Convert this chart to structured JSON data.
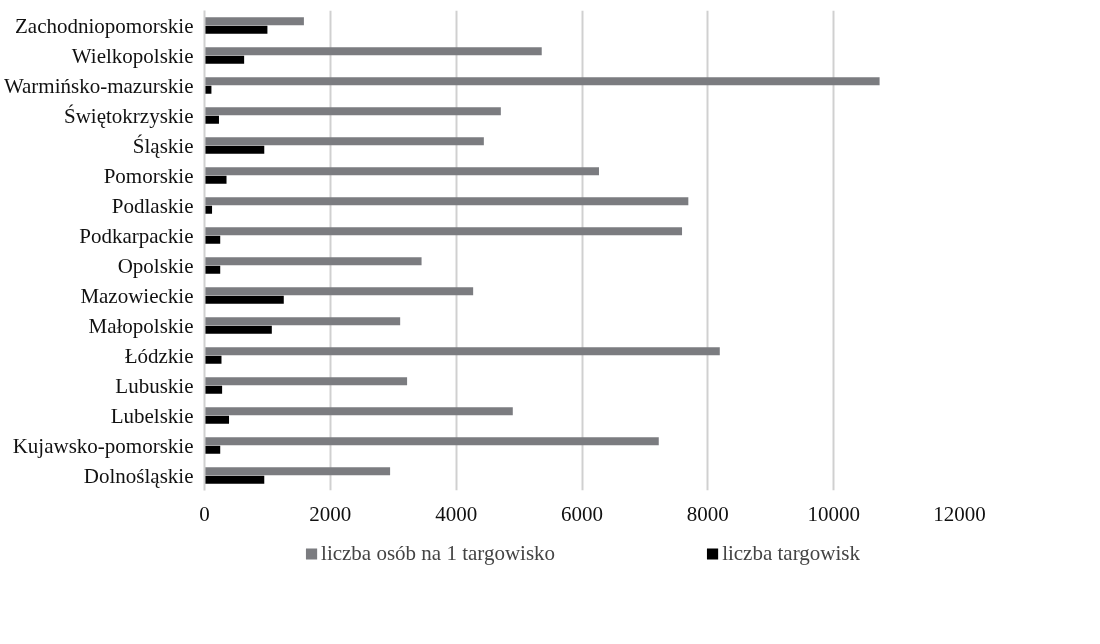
{
  "chart_data": {
    "type": "bar",
    "orientation": "horizontal",
    "categories": [
      "Zachodniopomorskie",
      "Wielkopolskie",
      "Warmińsko-mazurskie",
      "Świętokrzyskie",
      "Śląskie",
      "Pomorskie",
      "Podlaskie",
      "Podkarpackie",
      "Opolskie",
      "Mazowieckie",
      "Małopolskie",
      "Łódzkie",
      "Lubuskie",
      "Lubelskie",
      "Kujawsko-pomorskie",
      "Dolnośląskie"
    ],
    "series": [
      {
        "name": "liczba osób na 1 targowisko",
        "color": "#7b7c80",
        "values": [
          1580,
          5360,
          10730,
          4710,
          4440,
          6270,
          7690,
          7590,
          3450,
          4270,
          3110,
          8190,
          3220,
          4900,
          7220,
          2950
        ]
      },
      {
        "name": "liczba targowisk",
        "color": "#000000",
        "values": [
          1000,
          630,
          110,
          230,
          950,
          350,
          120,
          250,
          250,
          1260,
          1070,
          270,
          280,
          390,
          250,
          950
        ]
      }
    ],
    "xlim": [
      0,
      12000
    ],
    "xticks": [
      0,
      2000,
      4000,
      6000,
      8000,
      10000,
      12000
    ],
    "grid": "x",
    "legend": "bottom"
  }
}
